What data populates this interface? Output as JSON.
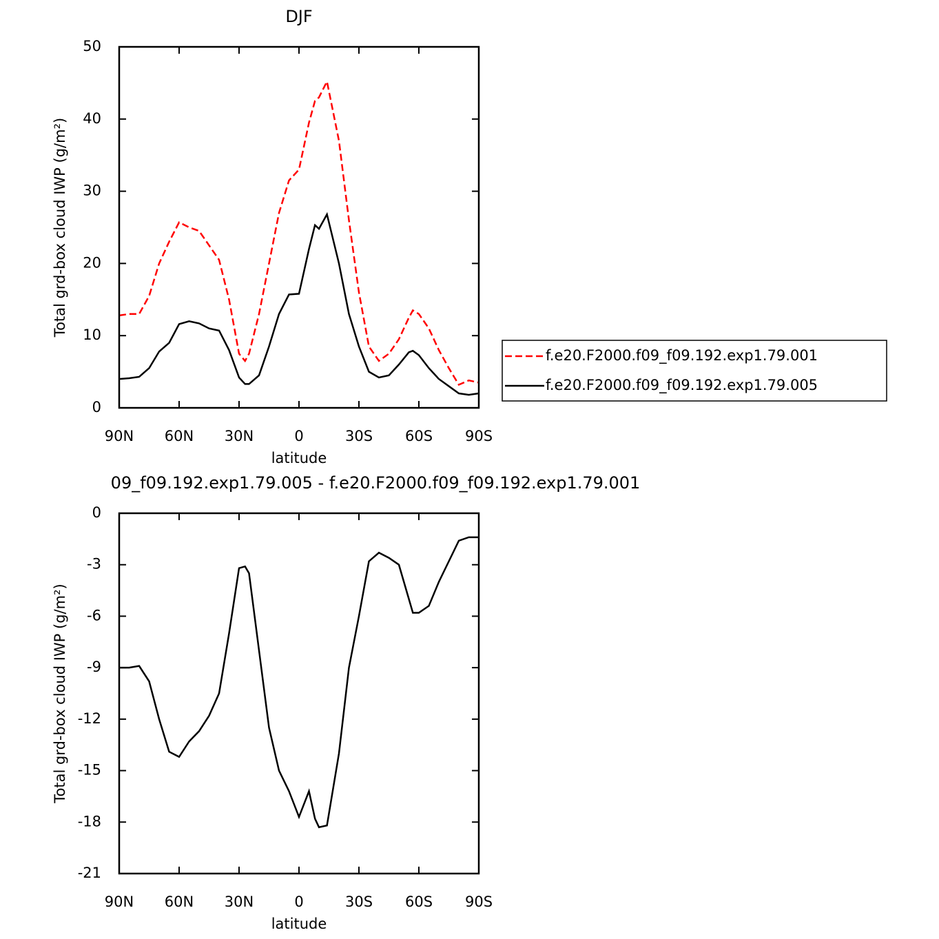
{
  "chart_data": [
    {
      "type": "line",
      "title": "DJF",
      "xlabel": "latitude",
      "ylabel": "Total grd-box cloud IWP (g/m²)",
      "x": [
        90,
        85,
        80,
        75,
        70,
        65,
        60,
        55,
        50,
        45,
        40,
        35,
        30,
        27,
        25,
        20,
        15,
        10,
        5,
        0,
        -5,
        -8,
        -10,
        -14,
        -20,
        -25,
        -30,
        -35,
        -40,
        -45,
        -50,
        -55,
        -57,
        -60,
        -65,
        -70,
        -75,
        -80,
        -85,
        -90
      ],
      "series": [
        {
          "name": "f.e20.F2000.f09_f09.192.exp1.79.001",
          "color": "#ff0000",
          "line_style": "dashed",
          "values": [
            12.8,
            13.0,
            13.0,
            15.5,
            20,
            23,
            25.7,
            25,
            24.5,
            22.5,
            20.5,
            15,
            7.5,
            6.5,
            7.5,
            13,
            20,
            27,
            31.5,
            33,
            39.5,
            42.5,
            43,
            45.2,
            37,
            26,
            16,
            8.5,
            6.5,
            7.5,
            9.5,
            12.5,
            13.5,
            13,
            11,
            8,
            5.5,
            3.2,
            3.8,
            3.5
          ]
        },
        {
          "name": "f.e20.F2000.f09_f09.192.exp1.79.005",
          "color": "#000000",
          "line_style": "solid",
          "values": [
            4,
            4.1,
            4.3,
            5.5,
            7.8,
            9,
            11.6,
            12,
            11.7,
            11,
            10.7,
            8,
            4.2,
            3.3,
            3.3,
            4.5,
            8.5,
            13,
            15.7,
            15.8,
            22,
            25.3,
            24.8,
            26.8,
            20,
            13,
            8.5,
            5,
            4.2,
            4.5,
            6,
            7.7,
            7.9,
            7.3,
            5.5,
            4,
            3,
            2,
            1.8,
            2
          ]
        }
      ],
      "xlim": [
        90,
        -90
      ],
      "xticks": [
        {
          "value": 90,
          "label": "90N"
        },
        {
          "value": 60,
          "label": "60N"
        },
        {
          "value": 30,
          "label": "30N"
        },
        0,
        {
          "value": -30,
          "label": "30S"
        },
        {
          "value": -60,
          "label": "60S"
        },
        {
          "value": -90,
          "label": "90S"
        }
      ],
      "ylim": [
        0,
        50
      ],
      "yticks": [
        0,
        10,
        20,
        30,
        40,
        50
      ],
      "legend": "right"
    },
    {
      "type": "line",
      "title": "09_f09.192.exp1.79.005 - f.e20.F2000.f09_f09.192.exp1.79.001",
      "xlabel": "latitude",
      "ylabel": "Total grd-box cloud IWP (g/m²)",
      "x": [
        90,
        85,
        80,
        75,
        70,
        65,
        60,
        55,
        50,
        45,
        40,
        35,
        30,
        27,
        25,
        20,
        15,
        10,
        5,
        0,
        -5,
        -8,
        -10,
        -14,
        -20,
        -25,
        -30,
        -35,
        -40,
        -45,
        -50,
        -55,
        -57,
        -60,
        -65,
        -70,
        -75,
        -80,
        -85,
        -90
      ],
      "series": [
        {
          "color": "#000000",
          "line_style": "solid",
          "values": [
            -9,
            -9,
            -8.9,
            -9.8,
            -12,
            -13.9,
            -14.2,
            -13.3,
            -12.7,
            -11.8,
            -10.5,
            -7,
            -3.2,
            -3.1,
            -3.5,
            -8,
            -12.5,
            -15,
            -16.2,
            -17.7,
            -16.2,
            -17.8,
            -18.3,
            -18.2,
            -14,
            -9,
            -6,
            -2.8,
            -2.3,
            -2.6,
            -3,
            -5,
            -5.8,
            -5.8,
            -5.4,
            -4,
            -2.8,
            -1.6,
            -1.4,
            -1.4
          ]
        }
      ],
      "xlim": [
        90,
        -90
      ],
      "xticks": [
        {
          "value": 90,
          "label": "90N"
        },
        {
          "value": 60,
          "label": "60N"
        },
        {
          "value": 30,
          "label": "30N"
        },
        0,
        {
          "value": -30,
          "label": "30S"
        },
        {
          "value": -60,
          "label": "60S"
        },
        {
          "value": -90,
          "label": "90S"
        }
      ],
      "ylim": [
        -21,
        0
      ],
      "yticks": [
        0,
        -3,
        -6,
        -9,
        -12,
        -15,
        -18,
        -21
      ]
    }
  ]
}
